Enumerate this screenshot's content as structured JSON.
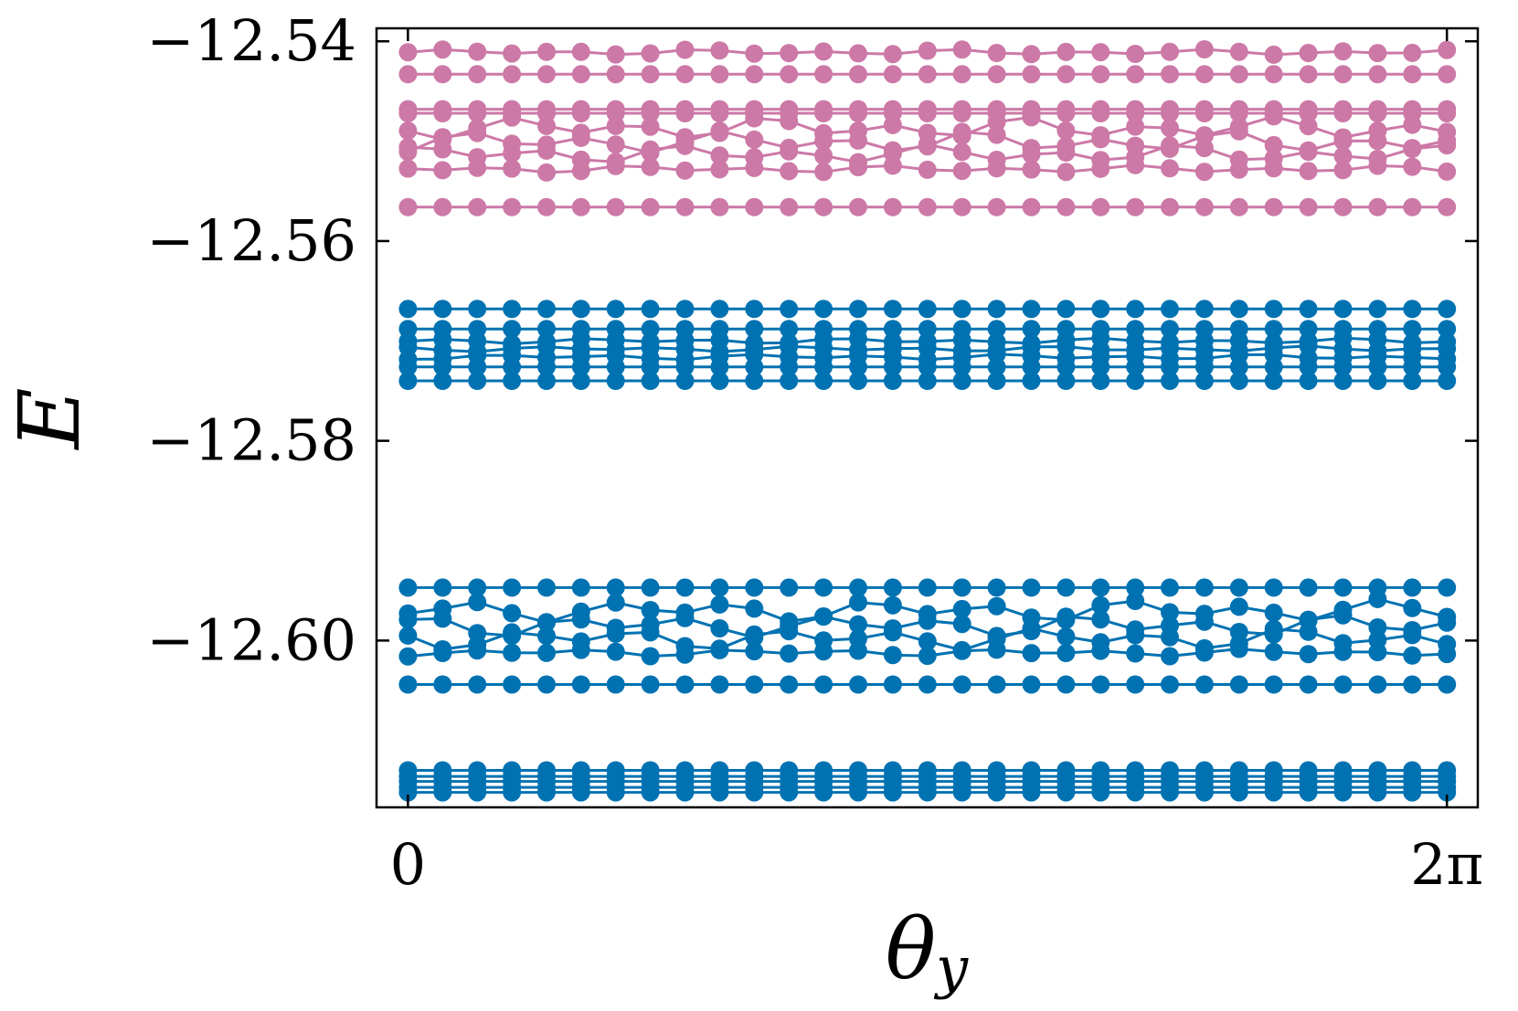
{
  "chart_data": {
    "type": "scatter",
    "title": "",
    "xlabel": "θ",
    "xlabel_subscript": "y",
    "ylabel": "E",
    "x_ticks": [
      "0",
      "2π"
    ],
    "y_ticks": [
      "−12.54",
      "−12.56",
      "−12.58",
      "−12.60"
    ],
    "y_tick_values": [
      -12.54,
      -12.56,
      -12.58,
      -12.6
    ],
    "xlim": [
      -0.19,
      6.47
    ],
    "ylim": [
      -12.6167,
      -12.5387
    ],
    "x_points": 31,
    "markers": "filled circles joined by lines",
    "grid": false,
    "legend": "none",
    "series": [
      {
        "color": "#cc79a7",
        "base": [
          -12.5411,
          -12.5433,
          -12.5468,
          -12.5472,
          -12.5487,
          -12.5501,
          -12.5513,
          -12.5528,
          -12.5566
        ],
        "wobble": [
          0.0003,
          0,
          0,
          0,
          0.0012,
          0.0012,
          0.001,
          0.0004,
          0
        ]
      },
      {
        "color": "#0072b2",
        "base": [
          -12.5668,
          -12.5688,
          -12.57,
          -12.5708,
          -12.5716,
          -12.5726,
          -12.574
        ],
        "wobble": [
          0,
          0,
          0.0003,
          0.0003,
          0.0003,
          0,
          0
        ]
      },
      {
        "color": "#0072b2",
        "base": [
          -12.5947,
          -12.597,
          -12.5985,
          -12.5998,
          -12.6012,
          -12.6044
        ],
        "wobble": [
          0,
          0.0012,
          0.0012,
          0.0012,
          0.0004,
          0
        ]
      },
      {
        "color": "#0072b2",
        "base": [
          -12.613,
          -12.6136,
          -12.6141,
          -12.6147,
          -12.6152
        ],
        "wobble": [
          0,
          0,
          0,
          0,
          0
        ]
      }
    ]
  }
}
